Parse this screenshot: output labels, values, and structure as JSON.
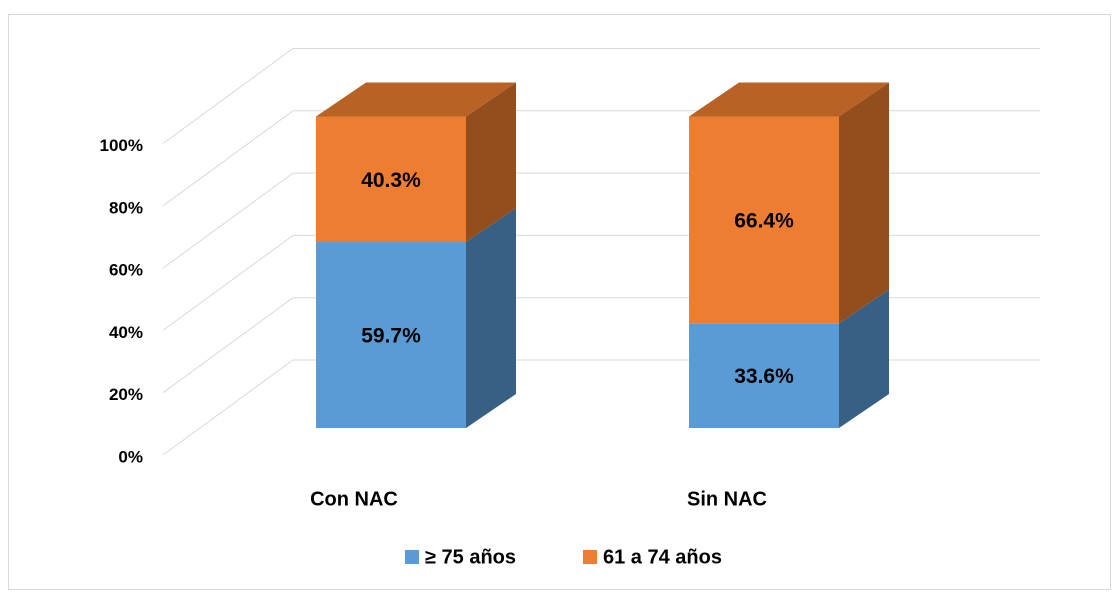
{
  "chart_data": {
    "type": "bar3d_stacked",
    "categories": [
      "Con NAC",
      "Sin NAC"
    ],
    "series": [
      {
        "name": "≥ 75 años",
        "color": "#5b9bd5",
        "values": [
          59.7,
          33.6
        ],
        "value_labels": [
          "59.7%",
          "33.6%"
        ]
      },
      {
        "name": "61 a 74 años",
        "color": "#ed7d31",
        "values": [
          40.3,
          66.4
        ],
        "value_labels": [
          "40.3%",
          "66.4%"
        ]
      }
    ],
    "ylim": [
      0,
      100
    ],
    "yticks": [
      {
        "value": 0,
        "label": "0%"
      },
      {
        "value": 20,
        "label": "20%"
      },
      {
        "value": 40,
        "label": "40%"
      },
      {
        "value": 60,
        "label": "60%"
      },
      {
        "value": 80,
        "label": "80%"
      },
      {
        "value": 100,
        "label": "100%"
      }
    ],
    "grid": true,
    "legend": "bottom"
  }
}
